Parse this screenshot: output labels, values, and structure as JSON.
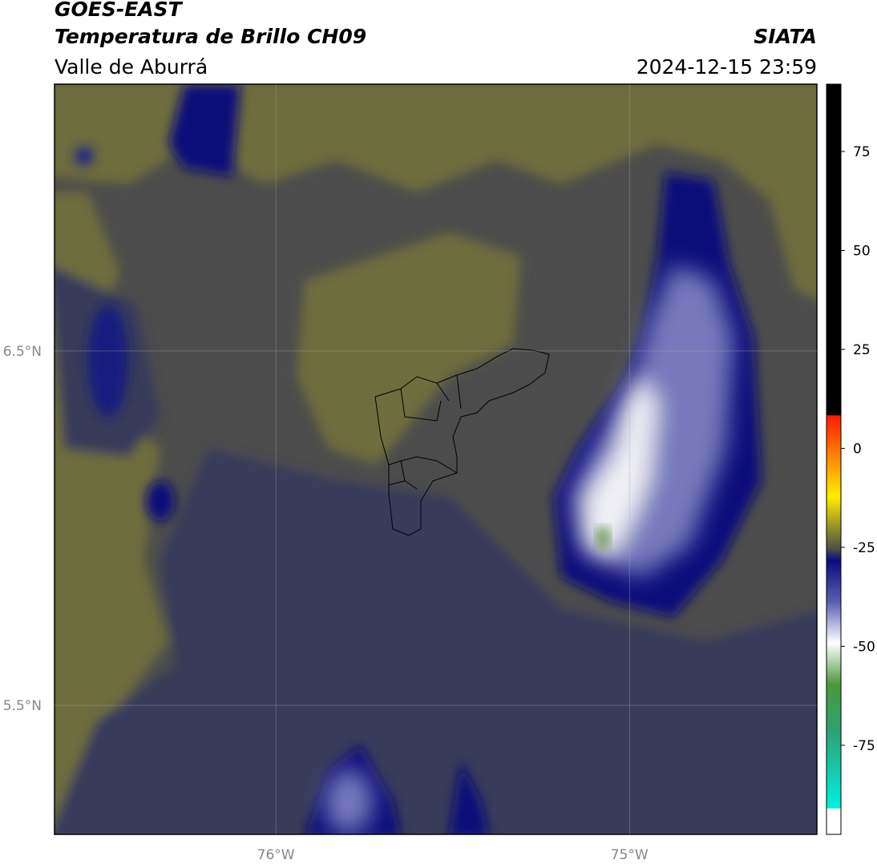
{
  "header": {
    "title": "GOES-EAST",
    "subtitle": "Temperatura de Brillo CH09",
    "region": "Valle de Aburrá",
    "source": "SIATA",
    "timestamp": "2024-12-15 23:59"
  },
  "map": {
    "xlim": [
      -76.626,
      -74.47
    ],
    "ylim": [
      5.136,
      7.253
    ],
    "xticks": [
      {
        "value": -76,
        "label": "76°W"
      },
      {
        "value": -75,
        "label": "75°W"
      }
    ],
    "yticks": [
      {
        "value": 6.5,
        "label": "6.5°N"
      },
      {
        "value": 5.5,
        "label": "5.5°N"
      }
    ],
    "grid": true
  },
  "colorbar": {
    "lim": [
      -97.5,
      92
    ],
    "ticks": [
      75,
      50,
      25,
      0,
      -25,
      -50,
      -75
    ]
  }
}
